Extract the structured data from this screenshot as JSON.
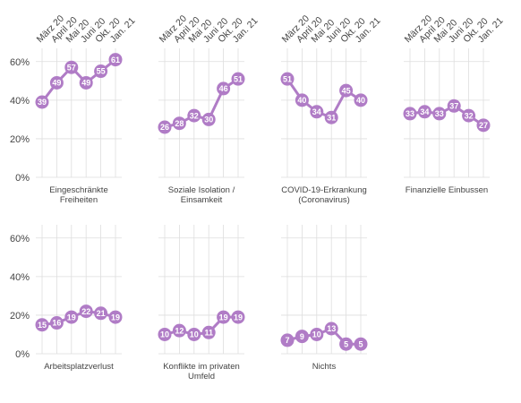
{
  "chart_data": {
    "type": "line",
    "layout": "small-multiples",
    "categories": [
      "März 20",
      "April 20",
      "Mai 20",
      "Juni 20",
      "Okt. 20",
      "Jan. 21"
    ],
    "y_ticks": [
      "0%",
      "20%",
      "40%",
      "60%"
    ],
    "ylim": [
      0,
      65
    ],
    "grid": true,
    "series_color": "#b07cc6",
    "panels": [
      {
        "title_lines": [
          "Eingeschränkte",
          "Freiheiten"
        ],
        "values": [
          39,
          49,
          57,
          49,
          55,
          61
        ],
        "show_x_labels": true
      },
      {
        "title_lines": [
          "Soziale Isolation /",
          "Einsamkeit"
        ],
        "values": [
          26,
          28,
          32,
          30,
          46,
          51
        ],
        "show_x_labels": true
      },
      {
        "title_lines": [
          "COVID-19-Erkrankung",
          "(Coronavirus)"
        ],
        "values": [
          51,
          40,
          34,
          31,
          45,
          40
        ],
        "show_x_labels": true
      },
      {
        "title_lines": [
          "Finanzielle Einbussen"
        ],
        "values": [
          33,
          34,
          33,
          37,
          32,
          27
        ],
        "show_x_labels": true
      },
      {
        "title_lines": [
          "Arbeitsplatzverlust"
        ],
        "values": [
          15,
          16,
          19,
          22,
          21,
          19
        ],
        "show_x_labels": false
      },
      {
        "title_lines": [
          "Konflikte im privaten",
          "Umfeld"
        ],
        "values": [
          10,
          12,
          10,
          11,
          19,
          19
        ],
        "show_x_labels": false
      },
      {
        "title_lines": [
          "Nichts"
        ],
        "values": [
          7,
          9,
          10,
          13,
          5,
          5
        ],
        "show_x_labels": false
      }
    ]
  }
}
